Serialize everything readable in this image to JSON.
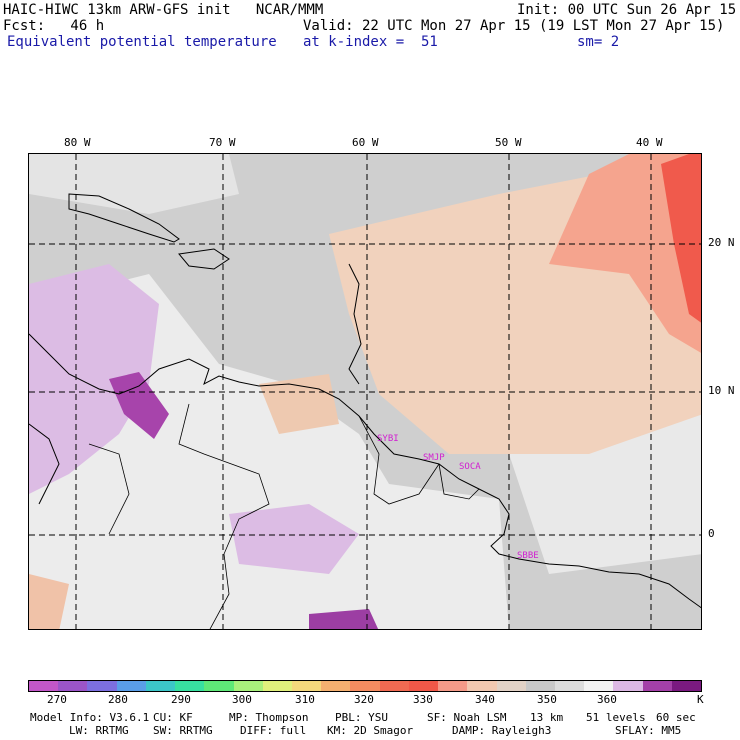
{
  "header": {
    "line1_left": "HAIC-HIWC 13km ARW-GFS init   NCAR/MMM",
    "line1_right": "Init: 00 UTC Sun 26 Apr 15",
    "line2_left": "Fcst:   46 h",
    "line2_right": "Valid: 22 UTC Mon 27 Apr 15 (19 LST Mon 27 Apr 15)",
    "line3_left": "Equivalent potential temperature",
    "line3_mid": "at k-index =  51",
    "line3_right": "sm= 2"
  },
  "map": {
    "lon_labels": [
      "80 W",
      "70 W",
      "60 W",
      "50 W",
      "40 W"
    ],
    "lat_labels": [
      "20 N",
      "10 N",
      "0"
    ],
    "stations": [
      "SYBI",
      "SMJP",
      "SOCA",
      "SBBE"
    ]
  },
  "colorbar": {
    "colors": [
      "#c257c8",
      "#9b55c8",
      "#7c6fe0",
      "#5a9ee8",
      "#3cc6c8",
      "#38e0a0",
      "#5ee878",
      "#a8f07c",
      "#e0f07c",
      "#f4d87c",
      "#f4b070",
      "#f48c60",
      "#f06a52",
      "#f05848",
      "#f49a88",
      "#f2c8b0",
      "#e2d2c6",
      "#c8c8c8",
      "#dcdcdc",
      "#f2f2f2",
      "#dcb8e4",
      "#a440a8",
      "#7a1a80"
    ],
    "labels": [
      "270",
      "280",
      "290",
      "300",
      "310",
      "320",
      "330",
      "340",
      "350",
      "360",
      "K"
    ]
  },
  "footer": {
    "line1": [
      "Model Info: V3.6.1",
      "CU: KF",
      "MP: Thompson",
      "PBL: YSU",
      "SF: Noah LSM",
      "13 km",
      "51 levels",
      "60 sec"
    ],
    "line2": [
      "LW: RRTMG",
      "SW: RRTMG",
      "DIFF: full",
      "KM: 2D Smagor",
      "DAMP: Rayleigh3",
      "SFLAY: MM5"
    ]
  }
}
